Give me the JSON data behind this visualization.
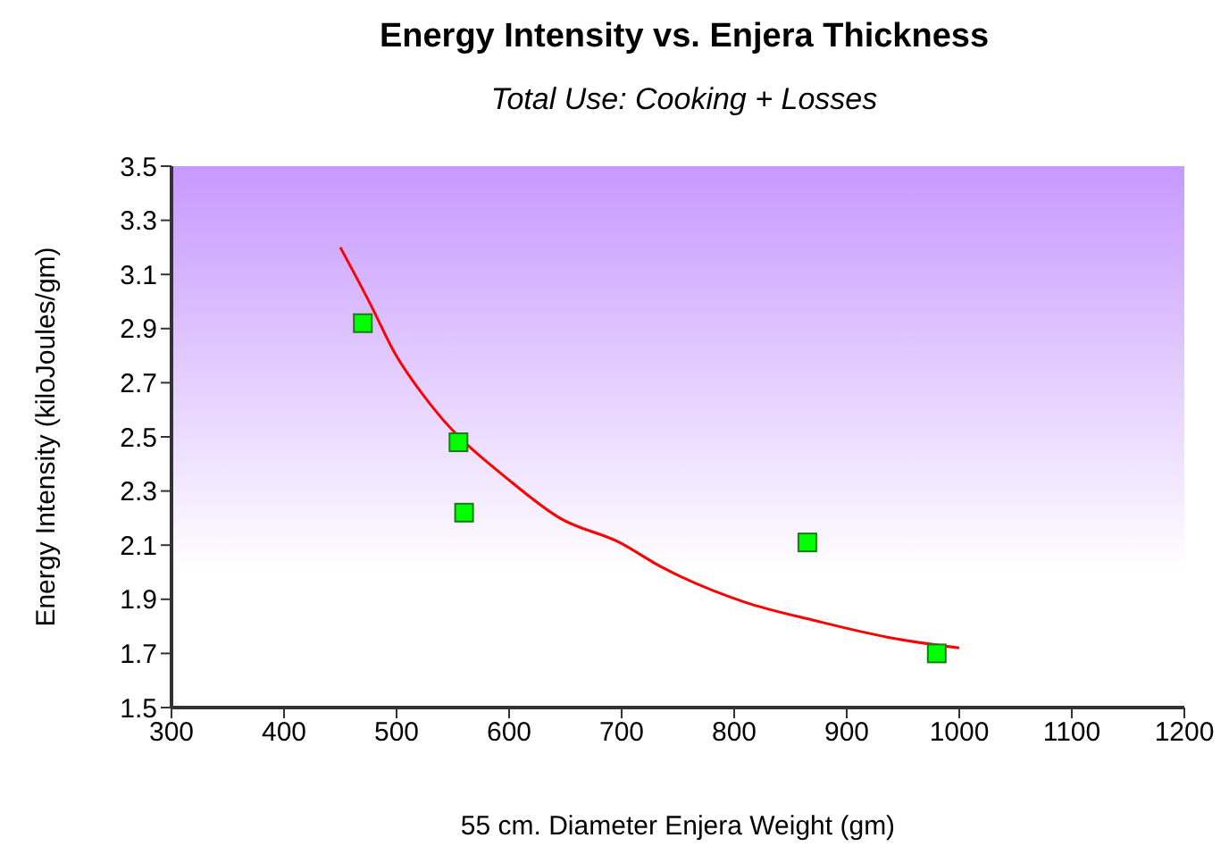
{
  "chart_data": {
    "type": "scatter",
    "title": "Energy Intensity vs. Enjera Thickness",
    "subtitle": "Total Use: Cooking + Losses",
    "xlabel": "55 cm. Diameter Enjera Weight (gm)",
    "ylabel": "Energy Intensity (kiloJoules/gm)",
    "xlim": [
      300,
      1200
    ],
    "xticks": [
      300,
      400,
      500,
      600,
      700,
      800,
      900,
      1000,
      1100,
      1200
    ],
    "ylim": [
      1.5,
      3.5
    ],
    "yticks": [
      1.5,
      1.7,
      1.9,
      2.1,
      2.3,
      2.5,
      2.7,
      2.9,
      3.1,
      3.3,
      3.5
    ],
    "grid": false,
    "legend": false,
    "series": [
      {
        "color": "#00ff00",
        "marker": "square",
        "x": [
          470,
          555,
          560,
          865,
          980
        ],
        "values": [
          2.92,
          2.48,
          2.22,
          2.11,
          1.7
        ]
      },
      {
        "type": "line",
        "color": "#ff0000",
        "marker": "none",
        "x": [
          450,
          478,
          497,
          530,
          603,
          645,
          698,
          735,
          809,
          873,
          936,
          1000
        ],
        "values": [
          3.2,
          2.98,
          2.82,
          2.62,
          2.33,
          2.2,
          2.11,
          2.02,
          1.89,
          1.82,
          1.76,
          1.72
        ]
      }
    ]
  }
}
